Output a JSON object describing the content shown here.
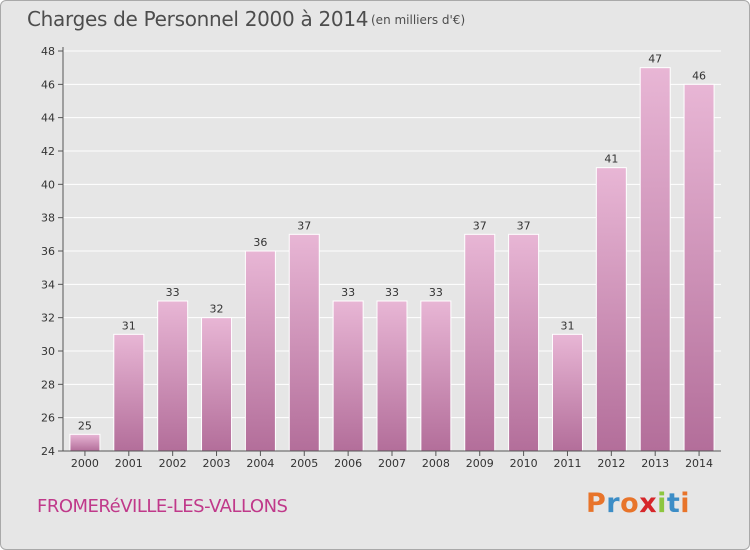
{
  "header": {
    "title": "Charges de Personnel 2000 à 2014",
    "subtitle": "(en milliers d'€)"
  },
  "footer": {
    "town": "FROMERéVILLE-LES-VALLONS",
    "logo_text": "Proxiti",
    "logo_colors": [
      "#e8742a",
      "#3c8dc6",
      "#e8742a",
      "#d6262a",
      "#8dc63f",
      "#3c8dc6",
      "#e8742a"
    ]
  },
  "colors": {
    "bar_top": "#e8b6d5",
    "bar_bottom": "#b36e9a",
    "axis": "#555555",
    "grid": "#ffffff",
    "text": "#333333"
  },
  "chart_data": {
    "type": "bar",
    "categories": [
      "2000",
      "2001",
      "2002",
      "2003",
      "2004",
      "2005",
      "2006",
      "2007",
      "2008",
      "2009",
      "2010",
      "2011",
      "2012",
      "2013",
      "2014"
    ],
    "values": [
      25,
      31,
      33,
      32,
      36,
      37,
      33,
      33,
      33,
      37,
      37,
      31,
      41,
      47,
      46
    ],
    "ylim": [
      24,
      48
    ],
    "yticks": [
      24,
      26,
      28,
      30,
      32,
      34,
      36,
      38,
      40,
      42,
      44,
      46,
      48
    ],
    "grid": true,
    "title": "Charges de Personnel 2000 à 2014",
    "xlabel": "",
    "ylabel": ""
  }
}
